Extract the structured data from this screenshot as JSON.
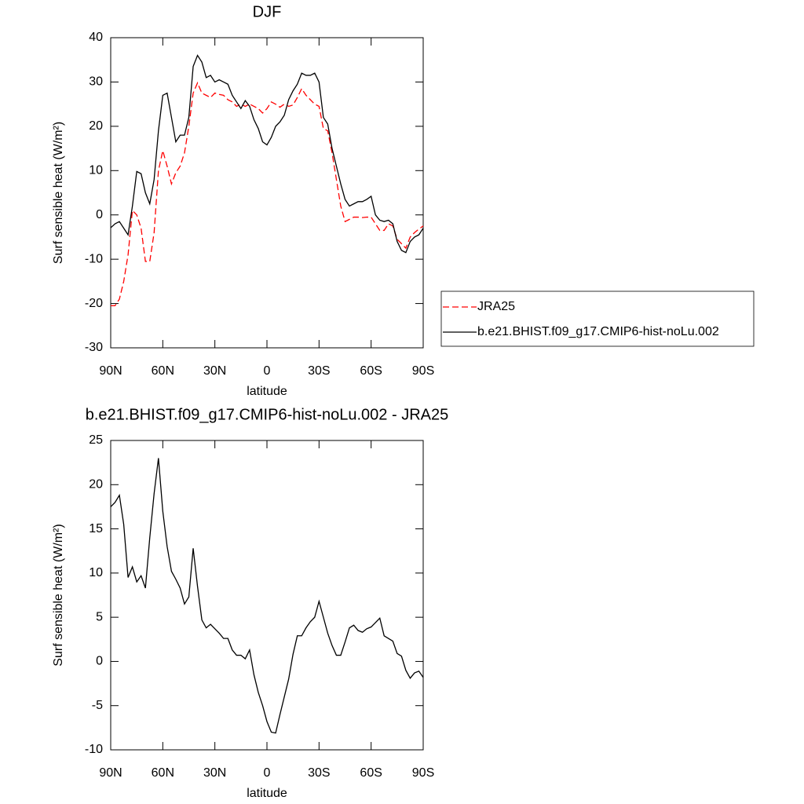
{
  "chart_data": [
    {
      "type": "line",
      "title": "DJF",
      "x_label": "latitude",
      "y_label": "Surf sensible heat (W/m²)",
      "x": [
        90,
        87.5,
        85,
        82.5,
        80,
        77.5,
        75,
        72.5,
        70,
        67.5,
        65,
        62.5,
        60,
        57.5,
        55,
        52.5,
        50,
        47.5,
        45,
        42.5,
        40,
        37.5,
        35,
        32.5,
        30,
        27.5,
        25,
        22.5,
        20,
        17.5,
        15,
        12.5,
        10,
        7.5,
        5,
        2.5,
        0,
        -2.5,
        -5,
        -7.5,
        -10,
        -12.5,
        -15,
        -17.5,
        -20,
        -22.5,
        -25,
        -27.5,
        -30,
        -32.5,
        -35,
        -37.5,
        -40,
        -42.5,
        -45,
        -47.5,
        -50,
        -52.5,
        -55,
        -57.5,
        -60,
        -62.5,
        -65,
        -67.5,
        -70,
        -72.5,
        -75,
        -77.5,
        -80,
        -82.5,
        -85,
        -87.5,
        -90
      ],
      "series": [
        {
          "name": "JRA25",
          "color": "#ff0000",
          "dashed": true,
          "values": [
            -20.5,
            -20.5,
            -19,
            -15,
            -9,
            1,
            0,
            -3,
            -10.5,
            -10.5,
            -4,
            10,
            14.5,
            11,
            7,
            9.5,
            11,
            14,
            20,
            27.5,
            29.8,
            27.5,
            27,
            26.5,
            27.5,
            27.2,
            27,
            26,
            25.5,
            24.5,
            25,
            24.5,
            25,
            24.5,
            24,
            23,
            24,
            25.5,
            25,
            24.3,
            25,
            24.5,
            24.8,
            26.5,
            28.5,
            27,
            26,
            25,
            24.5,
            19.5,
            19,
            14,
            8,
            2,
            -1.5,
            -1,
            -0.5,
            -0.5,
            -0.6,
            -0.5,
            -0.5,
            -2,
            -3.5,
            -3.5,
            -2,
            -2.5,
            -5.5,
            -6.5,
            -7.5,
            -5,
            -4,
            -3.2,
            -2.5
          ]
        },
        {
          "name": "b.e21.BHIST.f09_g17.CMIP6-hist-noLu.002",
          "color": "#000000",
          "dashed": false,
          "values": [
            -2.9,
            -2,
            -1.5,
            -3,
            -4.5,
            2,
            9.8,
            9.3,
            5,
            2.5,
            8,
            19,
            27,
            27.5,
            22,
            16.5,
            18,
            18,
            22,
            33.5,
            36,
            34.5,
            31,
            31.5,
            30,
            30.5,
            30,
            29.5,
            27,
            25.5,
            24,
            25.8,
            24.5,
            21.5,
            19.5,
            16.5,
            15.8,
            17.5,
            20,
            21,
            22.5,
            26,
            28,
            29.5,
            32,
            31.5,
            31.5,
            32,
            30,
            22,
            20.5,
            15,
            11,
            7,
            3.5,
            2,
            2.5,
            3,
            3,
            3.5,
            4.2,
            0,
            -1.2,
            -1.5,
            -1.2,
            -2,
            -6,
            -8,
            -8.5,
            -6,
            -5,
            -4.5,
            -3
          ]
        }
      ],
      "xlim": [
        90,
        -90
      ],
      "xticks": [
        {
          "value": 90,
          "label": "90N"
        },
        {
          "value": 60,
          "label": "60N"
        },
        {
          "value": 30,
          "label": "30N"
        },
        0,
        {
          "value": -30,
          "label": "30S"
        },
        {
          "value": -60,
          "label": "60S"
        },
        {
          "value": -90,
          "label": "90S"
        }
      ],
      "ylim": [
        -30,
        40
      ],
      "yticks": [
        -30,
        -20,
        -10,
        0,
        10,
        20,
        30,
        40
      ],
      "legend": "right"
    },
    {
      "type": "line",
      "title": "b.e21.BHIST.f09_g17.CMIP6-hist-noLu.002 - JRA25",
      "x_label": "latitude",
      "y_label": "Surf sensible heat (W/m²)",
      "x": [
        90,
        87.5,
        85,
        82.5,
        80,
        77.5,
        75,
        72.5,
        70,
        67.5,
        65,
        62.5,
        60,
        57.5,
        55,
        52.5,
        50,
        47.5,
        45,
        42.5,
        40,
        37.5,
        35,
        32.5,
        30,
        27.5,
        25,
        22.5,
        20,
        17.5,
        15,
        12.5,
        10,
        7.5,
        5,
        2.5,
        0,
        -2.5,
        -5,
        -7.5,
        -10,
        -12.5,
        -15,
        -17.5,
        -20,
        -22.5,
        -25,
        -27.5,
        -30,
        -32.5,
        -35,
        -37.5,
        -40,
        -42.5,
        -45,
        -47.5,
        -50,
        -52.5,
        -55,
        -57.5,
        -60,
        -62.5,
        -65,
        -67.5,
        -70,
        -72.5,
        -75,
        -77.5,
        -80,
        -82.5,
        -85,
        -87.5,
        -90
      ],
      "series": [
        {
          "color": "#000000",
          "dashed": false,
          "values": [
            17.5,
            18,
            18.8,
            15.5,
            9.5,
            10.7,
            9,
            9.7,
            8.3,
            14,
            19,
            23,
            17,
            13,
            10.2,
            9.3,
            8.3,
            6.5,
            7.3,
            12.8,
            8.5,
            4.7,
            3.8,
            4.2,
            3.7,
            3.2,
            2.6,
            2.6,
            1.3,
            0.7,
            0.7,
            0.3,
            1.3,
            -1.5,
            -3.5,
            -5,
            -6.8,
            -8,
            -8.1,
            -6,
            -4,
            -2,
            0.8,
            2.9,
            2.9,
            3.8,
            4.5,
            5,
            6.8,
            5,
            3.2,
            1.8,
            0.7,
            0.7,
            2.2,
            3.8,
            4.1,
            3.5,
            3.3,
            3.7,
            3.9,
            4.4,
            4.9,
            2.9,
            2.6,
            2.3,
            0.9,
            0.6,
            -1,
            -1.9,
            -1.3,
            -1.1,
            -1.8
          ]
        }
      ],
      "xlim": [
        90,
        -90
      ],
      "xticks": [
        {
          "value": 90,
          "label": "90N"
        },
        {
          "value": 60,
          "label": "60N"
        },
        {
          "value": 30,
          "label": "30N"
        },
        0,
        {
          "value": -30,
          "label": "30S"
        },
        {
          "value": -60,
          "label": "60S"
        },
        {
          "value": -90,
          "label": "90S"
        }
      ],
      "ylim": [
        -10,
        25
      ],
      "yticks": [
        -10,
        -5,
        0,
        5,
        10,
        15,
        20,
        25
      ]
    }
  ]
}
